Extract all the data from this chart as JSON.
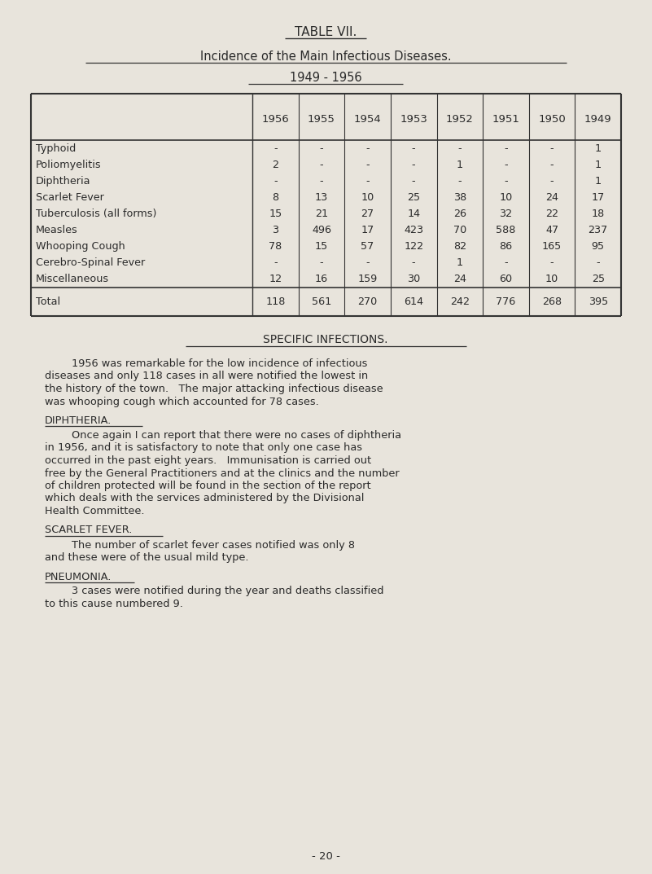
{
  "title1": "TABLE VII.",
  "title2": "Incidence of the Main Infectious Diseases.",
  "title3": "1949 - 1956",
  "col_headers": [
    "1956",
    "1955",
    "1954",
    "1953",
    "1952",
    "1951",
    "1950",
    "1949"
  ],
  "row_labels": [
    "Typhoid",
    "Poliomyelitis",
    "Diphtheria",
    "Scarlet Fever",
    "Tuberculosis (all forms)",
    "Measles",
    "Whooping Cough",
    "Cerebro-Spinal Fever",
    "Miscellaneous"
  ],
  "table_data": [
    [
      "-",
      "-",
      "-",
      "-",
      "-",
      "-",
      "-",
      "1"
    ],
    [
      "2",
      "-",
      "-",
      "-",
      "1",
      "-",
      "-",
      "1"
    ],
    [
      "-",
      "-",
      "-",
      "-",
      "-",
      "-",
      "-",
      "1"
    ],
    [
      "8",
      "13",
      "10",
      "25",
      "38",
      "10",
      "24",
      "17"
    ],
    [
      "15",
      "21",
      "27",
      "14",
      "26",
      "32",
      "22",
      "18"
    ],
    [
      "3",
      "496",
      "17",
      "423",
      "70",
      "588",
      "47",
      "237"
    ],
    [
      "78",
      "15",
      "57",
      "122",
      "82",
      "86",
      "165",
      "95"
    ],
    [
      "-",
      "-",
      "-",
      "-",
      "1",
      "-",
      "-",
      "-"
    ],
    [
      "12",
      "16",
      "159",
      "30",
      "24",
      "60",
      "10",
      "25"
    ]
  ],
  "total_label": "Total",
  "total_row": [
    "118",
    "561",
    "270",
    "614",
    "242",
    "776",
    "268",
    "395"
  ],
  "section_title": "SPECIFIC INFECTIONS.",
  "para1_lines": [
    "        1956 was remarkable for the low incidence of infectious",
    "diseases and only 118 cases in all were notified the lowest in",
    "the history of the town.   The major attacking infectious disease",
    "was whooping cough which accounted for 78 cases."
  ],
  "diphtheria_heading": "DIPHTHERIA.",
  "para2_lines": [
    "        Once again I can report that there were no cases of diphtheria",
    "in 1956, and it is satisfactory to note that only one case has",
    "occurred in the past eight years.   Immunisation is carried out",
    "free by the General Practitioners and at the clinics and the number",
    "of children protected will be found in the section of the report",
    "which deals with the services administered by the Divisional",
    "Health Committee."
  ],
  "scarlet_heading": "SCARLET FEVER.",
  "para3_lines": [
    "        The number of scarlet fever cases notified was only 8",
    "and these were of the usual mild type."
  ],
  "pneumonia_heading": "PNEUMONIA.",
  "para4_lines": [
    "        3 cases were notified during the year and deaths classified",
    "to this cause numbered 9."
  ],
  "page_number": "- 20 -",
  "bg_color": "#e8e4dc",
  "text_color": "#2a2a2a",
  "table_line_color": "#333333"
}
